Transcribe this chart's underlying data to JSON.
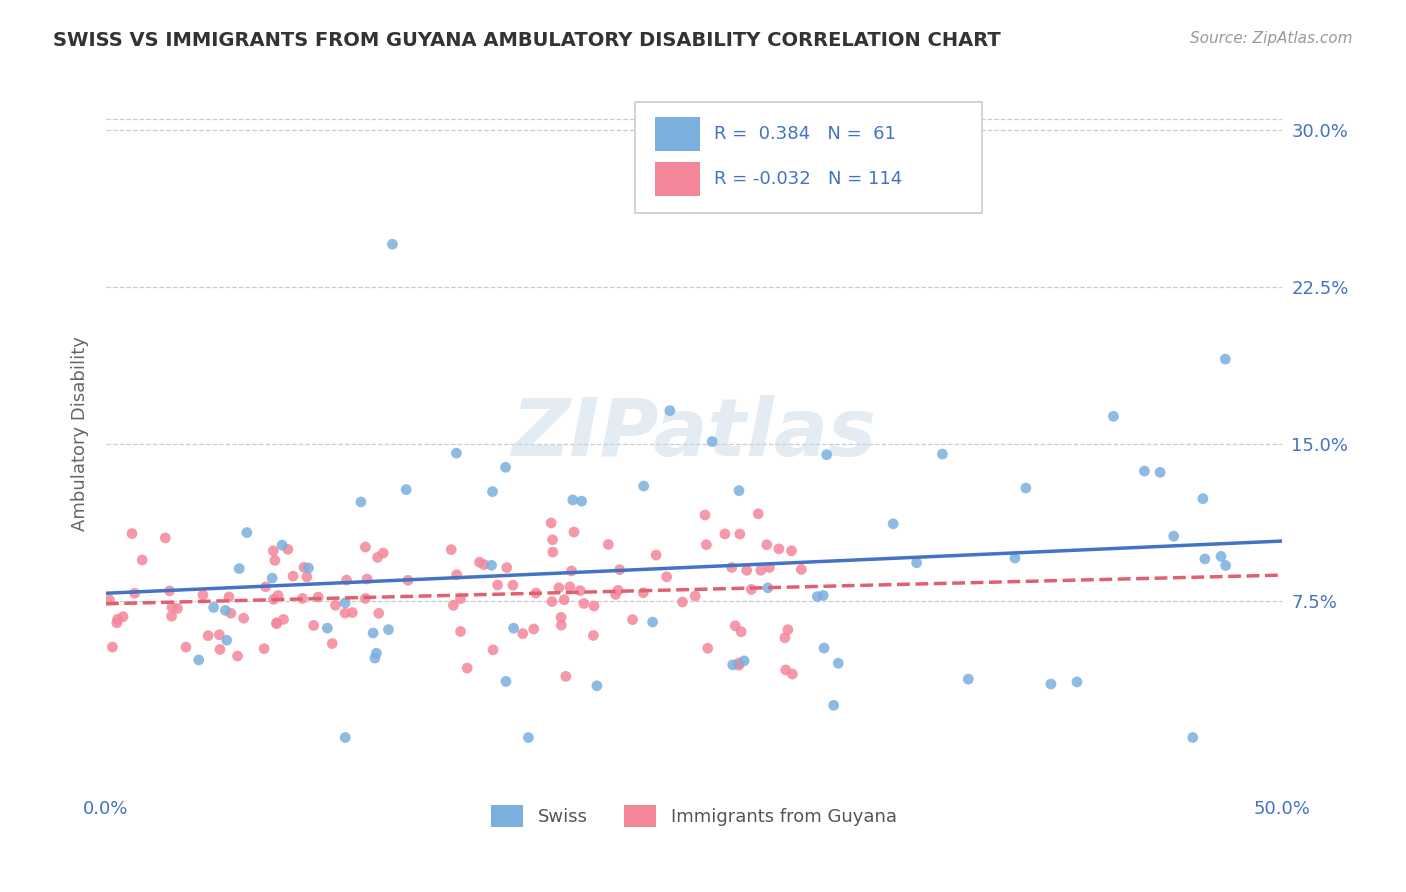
{
  "title": "SWISS VS IMMIGRANTS FROM GUYANA AMBULATORY DISABILITY CORRELATION CHART",
  "source": "Source: ZipAtlas.com",
  "ylabel": "Ambulatory Disability",
  "xlim": [
    0.0,
    0.5
  ],
  "ylim": [
    -0.015,
    0.325
  ],
  "yticks": [
    0.075,
    0.15,
    0.225,
    0.3
  ],
  "yticklabels": [
    "7.5%",
    "15.0%",
    "22.5%",
    "30.0%"
  ],
  "swiss_r": 0.384,
  "swiss_n": 61,
  "guyana_r": -0.032,
  "guyana_n": 114,
  "background_color": "#ffffff",
  "grid_color": "#cccccc",
  "watermark": "ZIPatlas",
  "swiss_scatter_color": "#7aafde",
  "guyana_scatter_color": "#f4869a",
  "swiss_line_color": "#4472c4",
  "guyana_line_color": "#e06070",
  "title_color": "#333333",
  "axis_label_color": "#666666",
  "tick_label_color": "#4472c4"
}
